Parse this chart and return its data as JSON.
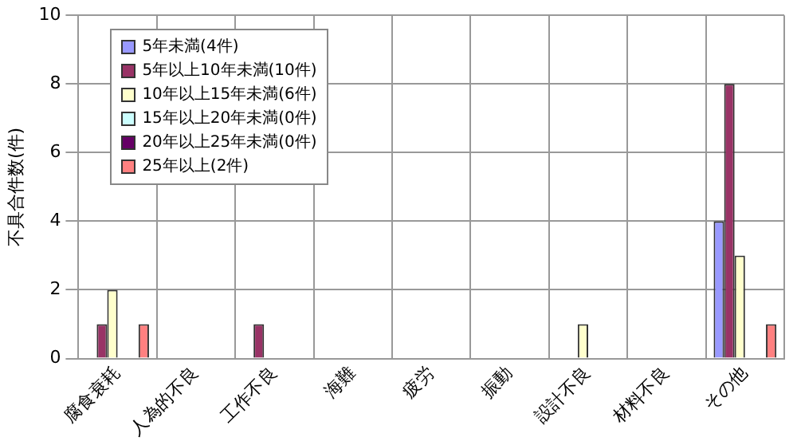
{
  "chart_data": {
    "type": "bar",
    "ylabel": "不具合件数(件)",
    "categories": [
      "腐食衰耗",
      "人為的不良",
      "工作不良",
      "海難",
      "疲労",
      "振動",
      "設計不良",
      "材料不良",
      "その他"
    ],
    "series": [
      {
        "name": "5年未満(4件)",
        "color": "#9999ff",
        "values": [
          0,
          0,
          0,
          0,
          0,
          0,
          0,
          0,
          4
        ]
      },
      {
        "name": "5年以上10年未満(10件)",
        "color": "#993366",
        "values": [
          1,
          0,
          1,
          0,
          0,
          0,
          0,
          0,
          8
        ]
      },
      {
        "name": "10年以上15年未満(6件)",
        "color": "#ffffcc",
        "values": [
          2,
          0,
          0,
          0,
          0,
          0,
          1,
          0,
          3
        ]
      },
      {
        "name": "15年以上20年未満(0件)",
        "color": "#ccffff",
        "values": [
          0,
          0,
          0,
          0,
          0,
          0,
          0,
          0,
          0
        ]
      },
      {
        "name": "20年以上25年未満(0件)",
        "color": "#660066",
        "values": [
          0,
          0,
          0,
          0,
          0,
          0,
          0,
          0,
          0
        ]
      },
      {
        "name": "25年以上(2件)",
        "color": "#ff8080",
        "values": [
          1,
          0,
          0,
          0,
          0,
          0,
          0,
          0,
          1
        ]
      }
    ],
    "ylim": [
      0,
      10
    ],
    "yticks": [
      0,
      2,
      4,
      6,
      8,
      10
    ],
    "grid": true,
    "legend": "top left"
  }
}
